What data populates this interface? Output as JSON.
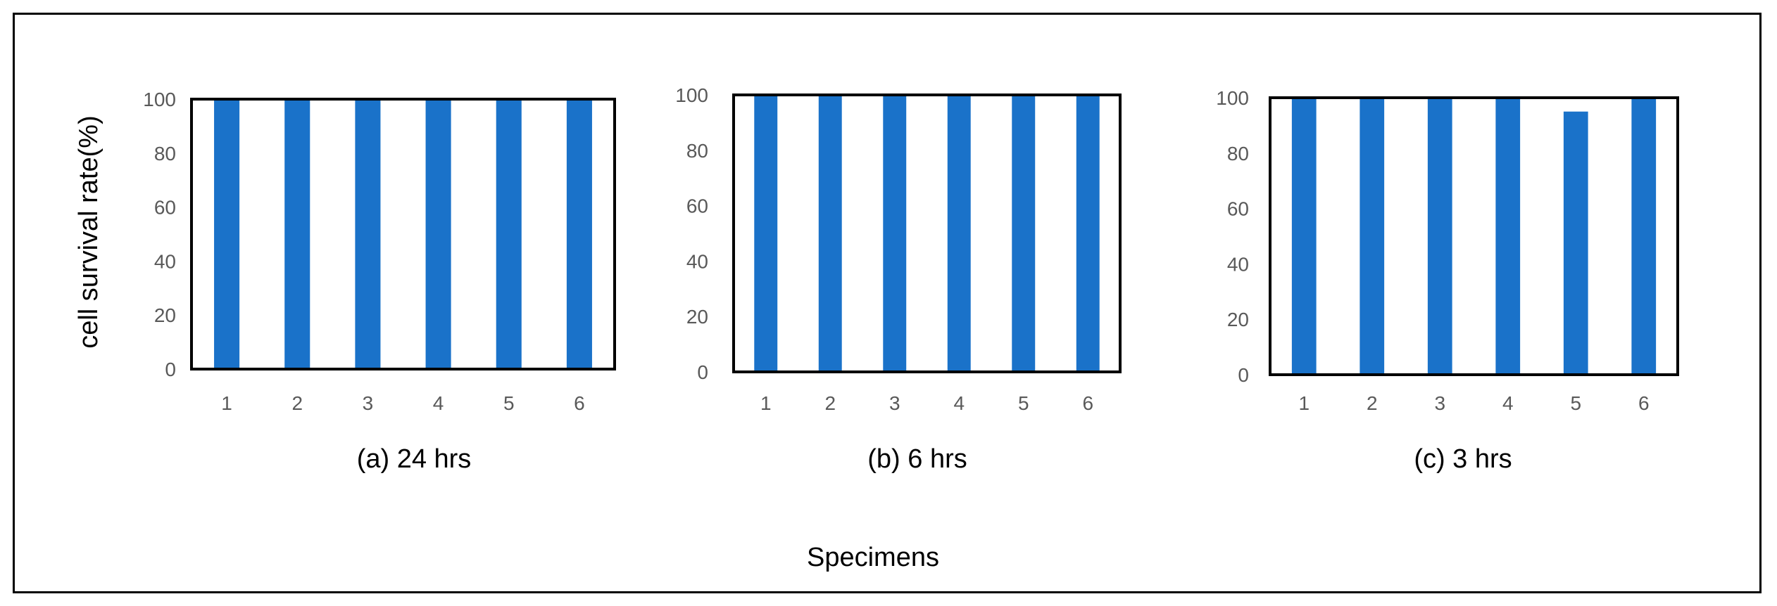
{
  "figure": {
    "y_axis_title": "cell survival rate(%)",
    "x_axis_title": "Specimens",
    "bar_color": "#1a72c9"
  },
  "chart_data": [
    {
      "type": "bar",
      "title": "(a) 24 hrs",
      "categories": [
        "1",
        "2",
        "3",
        "4",
        "5",
        "6"
      ],
      "values": [
        100,
        100,
        100,
        100,
        100,
        100
      ],
      "ylim": [
        0,
        100
      ],
      "yticks": [
        0,
        20,
        40,
        60,
        80,
        100
      ],
      "ylabel": "cell survival rate(%)",
      "xlabel": "Specimens",
      "grid": false
    },
    {
      "type": "bar",
      "title": "(b) 6 hrs",
      "categories": [
        "1",
        "2",
        "3",
        "4",
        "5",
        "6"
      ],
      "values": [
        100,
        100,
        100,
        100,
        100,
        100
      ],
      "ylim": [
        0,
        100
      ],
      "yticks": [
        0,
        20,
        40,
        60,
        80,
        100
      ],
      "ylabel": "",
      "xlabel": "",
      "grid": false
    },
    {
      "type": "bar",
      "title": "(c) 3 hrs",
      "categories": [
        "1",
        "2",
        "3",
        "4",
        "5",
        "6"
      ],
      "values": [
        100,
        100,
        100,
        100,
        95,
        100
      ],
      "ylim": [
        0,
        100
      ],
      "yticks": [
        0,
        20,
        40,
        60,
        80,
        100
      ],
      "ylabel": "",
      "xlabel": "",
      "grid": false
    }
  ]
}
